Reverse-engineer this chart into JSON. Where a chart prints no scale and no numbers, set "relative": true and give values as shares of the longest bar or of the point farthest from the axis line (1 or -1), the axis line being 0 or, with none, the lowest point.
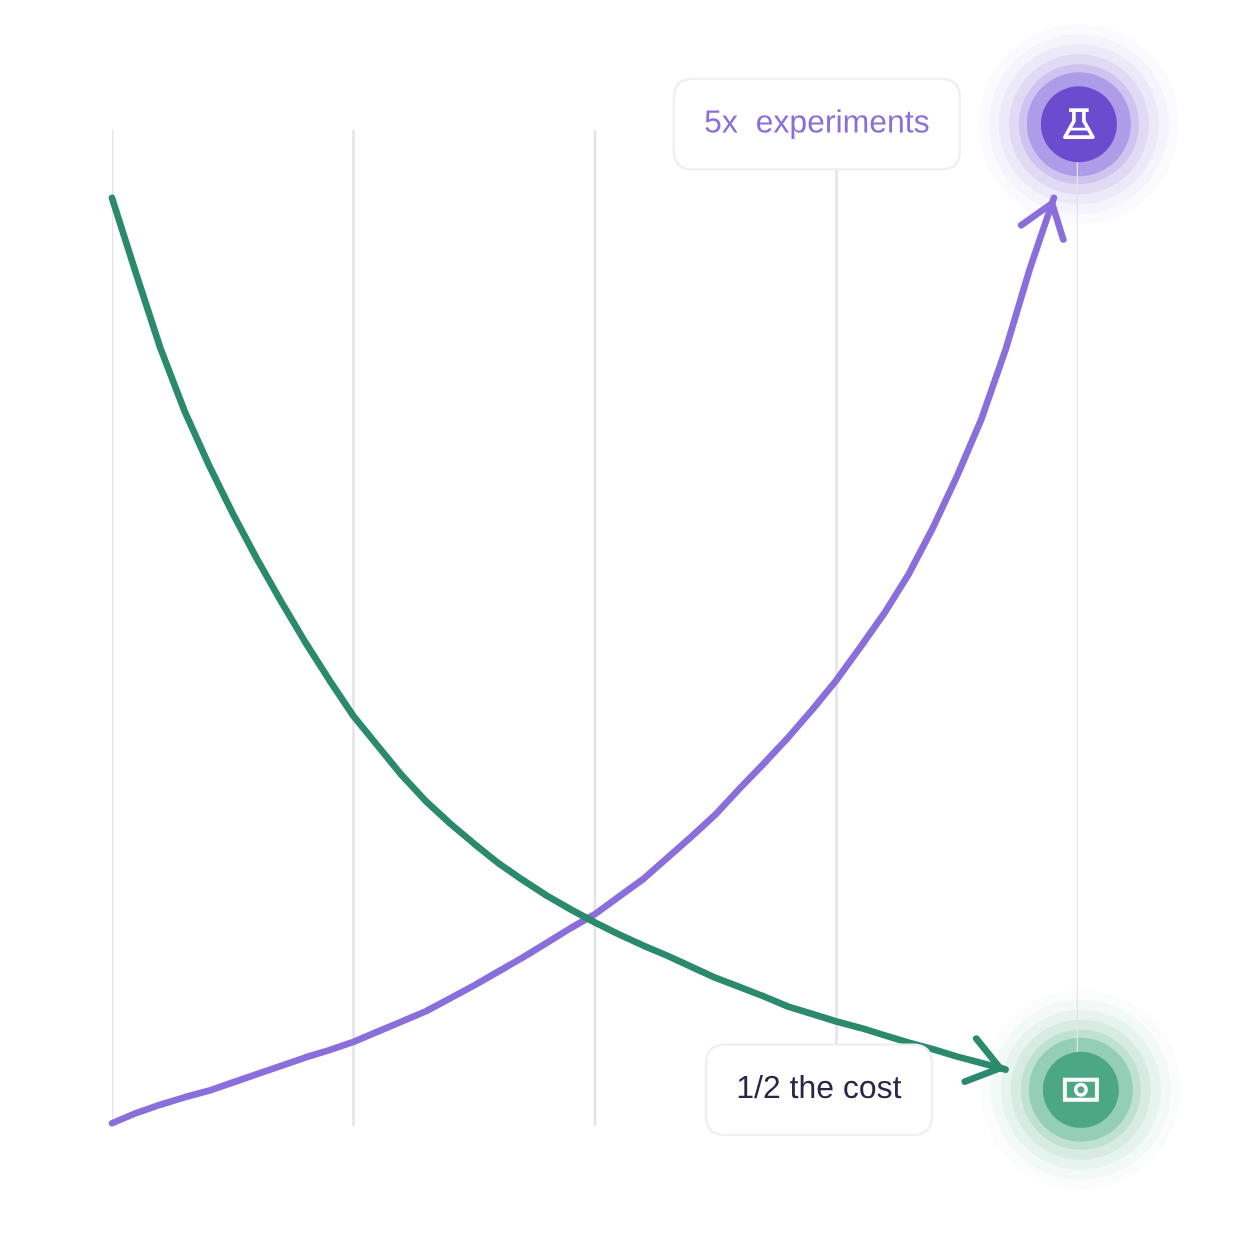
{
  "chart_data": {
    "type": "line",
    "relative": true,
    "line_style": "solid",
    "grid": "x",
    "categories": [
      null,
      null,
      null,
      null,
      null,
      null,
      null,
      null,
      null,
      null,
      null,
      null,
      null,
      null,
      null,
      null,
      null,
      null,
      null,
      null,
      null,
      null,
      null,
      null,
      null,
      null,
      null,
      null,
      null,
      null,
      null,
      null,
      null,
      null,
      null,
      null,
      null,
      null,
      null,
      null,
      null
    ],
    "series": [
      {
        "name": "5x  experiments",
        "color": "#8a6fdc",
        "values": [
          0,
          0.011,
          0.02,
          0.028,
          0.035,
          0.044,
          0.053,
          0.062,
          0.071,
          0.079,
          0.088,
          0.099,
          0.11,
          0.121,
          0.135,
          0.149,
          0.164,
          0.179,
          0.195,
          0.211,
          0.226,
          0.245,
          0.264,
          0.287,
          0.31,
          0.334,
          0.362,
          0.389,
          0.417,
          0.447,
          0.479,
          0.515,
          0.552,
          0.594,
          0.644,
          0.7,
          0.761,
          0.836,
          0.923,
          1.0,
          null
        ]
      },
      {
        "name": "1/2 the cost",
        "color": "#2a8a6b",
        "values": [
          1.0,
          0.918,
          0.838,
          0.77,
          0.712,
          0.659,
          0.61,
          0.564,
          0.52,
          0.479,
          0.44,
          0.408,
          0.376,
          0.348,
          0.324,
          0.302,
          0.281,
          0.263,
          0.246,
          0.231,
          0.217,
          0.204,
          0.192,
          0.181,
          0.169,
          0.157,
          0.147,
          0.137,
          0.126,
          0.118,
          0.11,
          0.103,
          0.095,
          0.087,
          0.08,
          0.072,
          0.065,
          0.058,
          null,
          null,
          null
        ]
      }
    ]
  }
}
